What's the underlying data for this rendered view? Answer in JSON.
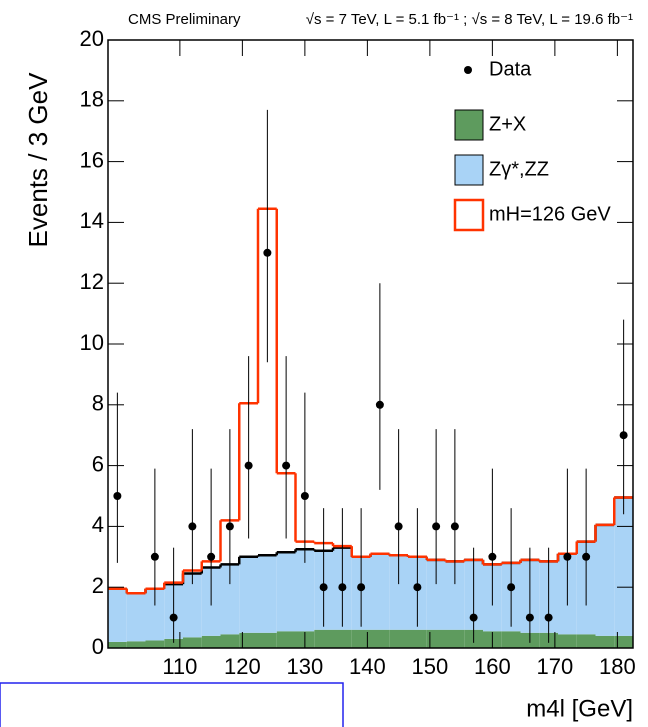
{
  "chart_data": {
    "type": "histogram",
    "title": "CMS Preliminary",
    "subtitle": "√s = 7 TeV, L = 5.1 fb⁻¹ ; √s = 8 TeV, L = 19.6 fb⁻¹",
    "x_label": "m4l [GeV]",
    "y_label": "Events / 3 GeV",
    "bins": [
      98.5,
      101.5,
      104.5,
      107.5,
      110.5,
      113.5,
      116.5,
      119.5,
      122.5,
      125.5,
      128.5,
      131.5,
      134.5,
      137.5,
      140.5,
      143.5,
      146.5,
      149.5,
      152.5,
      155.5,
      158.5,
      161.5,
      164.5,
      167.5,
      170.5,
      173.5,
      176.5,
      179.5,
      182.5
    ],
    "xlim": [
      98.5,
      182.5
    ],
    "xticks": [
      110,
      120,
      130,
      140,
      150,
      160,
      170,
      180
    ],
    "ylim": [
      0,
      20
    ],
    "yticks": [
      0,
      2,
      4,
      6,
      8,
      10,
      12,
      14,
      16,
      18,
      20
    ],
    "series": [
      {
        "name": "Z+X",
        "color": "#5e9b5e",
        "values": [
          0.2,
          0.22,
          0.25,
          0.3,
          0.35,
          0.4,
          0.45,
          0.5,
          0.5,
          0.55,
          0.55,
          0.6,
          0.6,
          0.6,
          0.6,
          0.6,
          0.6,
          0.6,
          0.6,
          0.6,
          0.55,
          0.55,
          0.5,
          0.5,
          0.45,
          0.45,
          0.4,
          0.4
        ]
      },
      {
        "name": "Zγ*,ZZ",
        "color": "#a9d3f6",
        "values": [
          1.75,
          1.58,
          1.7,
          1.8,
          2.1,
          2.25,
          2.3,
          2.5,
          2.55,
          2.6,
          2.7,
          2.6,
          2.7,
          2.4,
          2.5,
          2.45,
          2.4,
          2.3,
          2.25,
          2.3,
          2.2,
          2.25,
          2.4,
          2.35,
          2.65,
          3.05,
          3.65,
          4.55
        ]
      },
      {
        "name": "mH=126 GeV",
        "color": "#ff3300",
        "values": [
          0,
          0,
          0,
          0.05,
          0.1,
          0.2,
          1.45,
          5.05,
          11.4,
          2.6,
          0.25,
          0.25,
          0.05,
          0,
          0,
          0,
          0,
          0,
          0,
          0,
          0,
          0,
          0,
          0,
          0,
          0,
          0,
          0
        ]
      }
    ],
    "data": {
      "name": "Data",
      "values": [
        5,
        null,
        3,
        1,
        4,
        3,
        4,
        6,
        13,
        6,
        5,
        2,
        2,
        2,
        8,
        4,
        2,
        4,
        4,
        1,
        3,
        2,
        1,
        1,
        3,
        3,
        null,
        7
      ],
      "error_low": [
        2.2,
        null,
        1.6,
        0.83,
        1.9,
        1.6,
        1.9,
        2.4,
        3.6,
        2.4,
        2.2,
        1.3,
        1.3,
        1.3,
        2.8,
        1.9,
        1.3,
        1.9,
        1.9,
        0.83,
        1.6,
        1.3,
        0.83,
        0.83,
        1.6,
        1.6,
        null,
        2.6
      ],
      "error_high": [
        3.4,
        null,
        2.9,
        2.3,
        3.2,
        2.9,
        3.2,
        3.6,
        4.7,
        3.6,
        3.4,
        2.6,
        2.6,
        2.6,
        4.0,
        3.2,
        2.6,
        3.2,
        3.2,
        2.3,
        2.9,
        2.6,
        2.3,
        2.3,
        2.9,
        2.9,
        null,
        3.8
      ]
    },
    "legend": "upper right"
  }
}
